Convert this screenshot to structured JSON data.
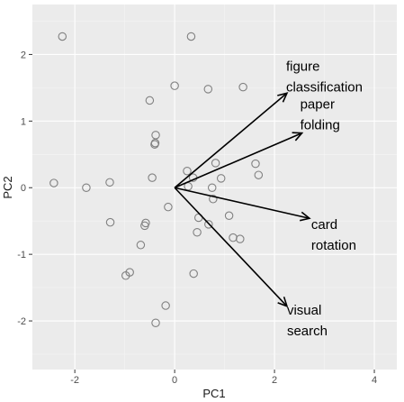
{
  "chart_data": {
    "type": "scatter",
    "title": "",
    "xlabel": "PC1",
    "ylabel": "PC2",
    "xlim": [
      -2.85,
      4.45
    ],
    "ylim": [
      -2.73,
      2.75
    ],
    "xticks": [
      -2,
      0,
      2,
      4
    ],
    "yticks": [
      -2,
      -1,
      0,
      1,
      2
    ],
    "xtick_labels": [
      "-2",
      "0",
      "2",
      "4"
    ],
    "ytick_labels": [
      "-2",
      "-1",
      "0",
      "1",
      "2"
    ],
    "grid": true,
    "background": "#ebebeb",
    "point_color": "#808080",
    "points": [
      {
        "x": -2.25,
        "y": 2.27
      },
      {
        "x": 0.33,
        "y": 2.27
      },
      {
        "x": 0.0,
        "y": 1.53
      },
      {
        "x": 0.67,
        "y": 1.48
      },
      {
        "x": 1.37,
        "y": 1.51
      },
      {
        "x": -0.5,
        "y": 1.31
      },
      {
        "x": -0.38,
        "y": 0.79
      },
      {
        "x": -0.39,
        "y": 0.67
      },
      {
        "x": -0.4,
        "y": 0.65
      },
      {
        "x": 0.25,
        "y": 0.25
      },
      {
        "x": 0.82,
        "y": 0.37
      },
      {
        "x": 1.62,
        "y": 0.36
      },
      {
        "x": 1.68,
        "y": 0.19
      },
      {
        "x": 0.37,
        "y": 0.15
      },
      {
        "x": 0.93,
        "y": 0.14
      },
      {
        "x": -0.45,
        "y": 0.15
      },
      {
        "x": -2.42,
        "y": 0.07
      },
      {
        "x": -1.3,
        "y": 0.08
      },
      {
        "x": -1.77,
        "y": 0.0
      },
      {
        "x": 0.27,
        "y": 0.02
      },
      {
        "x": 0.75,
        "y": 0.0
      },
      {
        "x": 0.77,
        "y": -0.17
      },
      {
        "x": -0.13,
        "y": -0.29
      },
      {
        "x": 0.48,
        "y": -0.45
      },
      {
        "x": 1.09,
        "y": -0.42
      },
      {
        "x": -1.29,
        "y": -0.52
      },
      {
        "x": -0.58,
        "y": -0.53
      },
      {
        "x": -0.6,
        "y": -0.57
      },
      {
        "x": 0.68,
        "y": -0.55
      },
      {
        "x": 0.45,
        "y": -0.67
      },
      {
        "x": 1.17,
        "y": -0.75
      },
      {
        "x": 1.31,
        "y": -0.77
      },
      {
        "x": -0.68,
        "y": -0.86
      },
      {
        "x": -0.9,
        "y": -1.27
      },
      {
        "x": -0.98,
        "y": -1.32
      },
      {
        "x": 0.38,
        "y": -1.29
      },
      {
        "x": -0.18,
        "y": -1.77
      },
      {
        "x": -0.38,
        "y": -2.03
      }
    ],
    "arrows": [
      {
        "label_lines": [
          "figure",
          "classification"
        ],
        "x": 2.25,
        "y": 1.42
      },
      {
        "label_lines": [
          "paper",
          "folding"
        ],
        "x": 2.55,
        "y": 0.82
      },
      {
        "label_lines": [
          "card",
          "rotation"
        ],
        "x": 2.7,
        "y": -0.46
      },
      {
        "label_lines": [
          "visual",
          "search"
        ],
        "x": 2.25,
        "y": -1.78
      }
    ]
  }
}
